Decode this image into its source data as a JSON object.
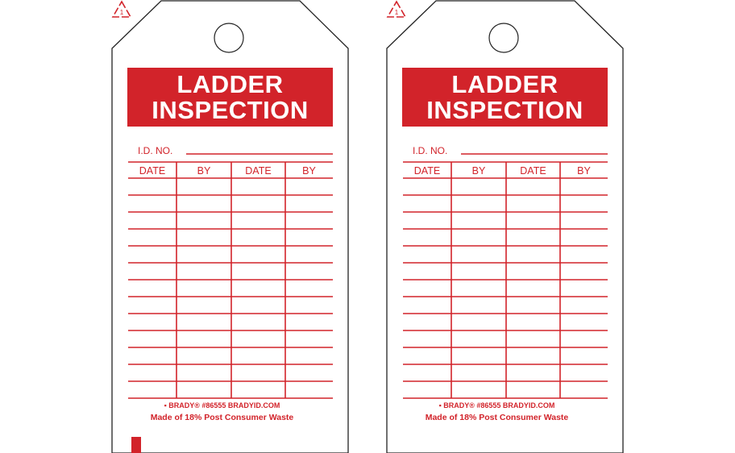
{
  "tags": [
    {
      "title_line1": "LADDER",
      "title_line2": "INSPECTION",
      "id_label": "I.D. NO.",
      "columns": [
        "DATE",
        "BY",
        "DATE",
        "BY"
      ],
      "brand_line": "▪ BRADY® #86555 BRADYID.COM",
      "waste_line": "Made of 18% Post Consumer Waste",
      "recycle_code": "1"
    },
    {
      "title_line1": "LADDER",
      "title_line2": "INSPECTION",
      "id_label": "I.D. NO.",
      "columns": [
        "DATE",
        "BY",
        "DATE",
        "BY"
      ],
      "brand_line": "▪ BRADY® #86555 BRADYID.COM",
      "waste_line": "Made of 18% Post Consumer Waste",
      "recycle_code": "1"
    }
  ],
  "colors": {
    "accent": "#d2232a",
    "outline": "#222222"
  }
}
